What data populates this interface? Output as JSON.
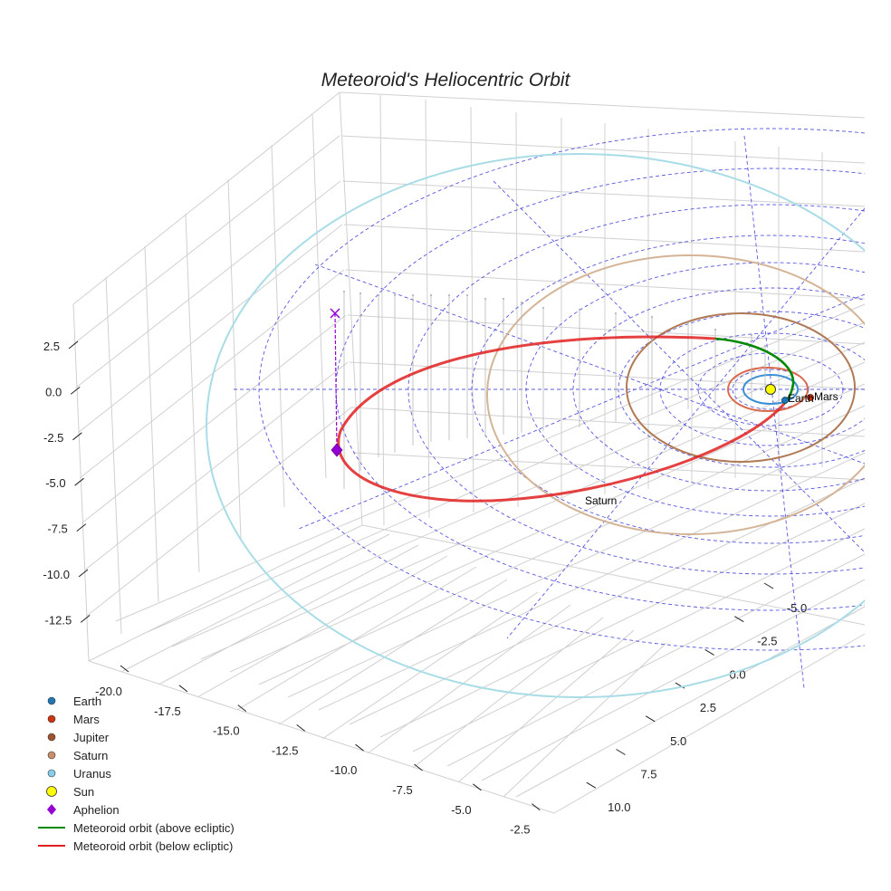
{
  "chart_data": {
    "type": "scatter3d",
    "title": "Meteoroid's Heliocentric Orbit",
    "x_ticks": [
      "-20.0",
      "-17.5",
      "-15.0",
      "-12.5",
      "-10.0",
      "-7.5",
      "-5.0",
      "-2.5"
    ],
    "y_ticks": [
      "-5.0",
      "-2.5",
      "0.0",
      "2.5",
      "5.0",
      "7.5",
      "10.0"
    ],
    "z_ticks": [
      "2.5",
      "0.0",
      "-2.5",
      "-5.0",
      "-7.5",
      "-10.0",
      "-12.5"
    ],
    "xlim": [
      -21,
      -2
    ],
    "ylim": [
      -7,
      11
    ],
    "zlim": [
      -14,
      4
    ],
    "planets": [
      {
        "name": "Earth",
        "color": "#1f77b4",
        "orbit_color": "#3a8fd6",
        "label": "Earth"
      },
      {
        "name": "Mars",
        "color": "#cc3311",
        "orbit_color": "#d9694a",
        "label": "Mars"
      },
      {
        "name": "Jupiter",
        "color": "#a0522d",
        "orbit_color": "#b07a55",
        "label": ""
      },
      {
        "name": "Saturn",
        "color": "#c8906a",
        "orbit_color": "#d4b496",
        "label": "Saturn"
      },
      {
        "name": "Uranus",
        "color": "#87ceeb",
        "orbit_color": "#a8dce6",
        "label": ""
      }
    ],
    "sun": {
      "name": "Sun",
      "color": "#ffff00"
    },
    "aphelion": {
      "name": "Aphelion",
      "color": "#9400d3"
    },
    "meteoroid": {
      "above_label": "Meteoroid orbit (above ecliptic)",
      "above_color": "#008800",
      "below_label": "Meteoroid orbit (below ecliptic)",
      "below_color": "#e02020"
    },
    "legend": [
      {
        "label": "Earth",
        "kind": "dot",
        "color": "#1f77b4"
      },
      {
        "label": "Mars",
        "kind": "dot",
        "color": "#cc3311"
      },
      {
        "label": "Jupiter",
        "kind": "dot",
        "color": "#a0522d"
      },
      {
        "label": "Saturn",
        "kind": "dot",
        "color": "#c8906a"
      },
      {
        "label": "Uranus",
        "kind": "dot",
        "color": "#87ceeb"
      },
      {
        "label": "Sun",
        "kind": "bigdot",
        "color": "#ffff00"
      },
      {
        "label": "Aphelion",
        "kind": "diamond",
        "color": "#9400d3"
      },
      {
        "label": "Meteoroid orbit (above ecliptic)",
        "kind": "line",
        "color": "#008800"
      },
      {
        "label": "Meteoroid orbit (below ecliptic)",
        "kind": "line",
        "color": "#e02020"
      }
    ],
    "legend_position": "bottom-left"
  }
}
